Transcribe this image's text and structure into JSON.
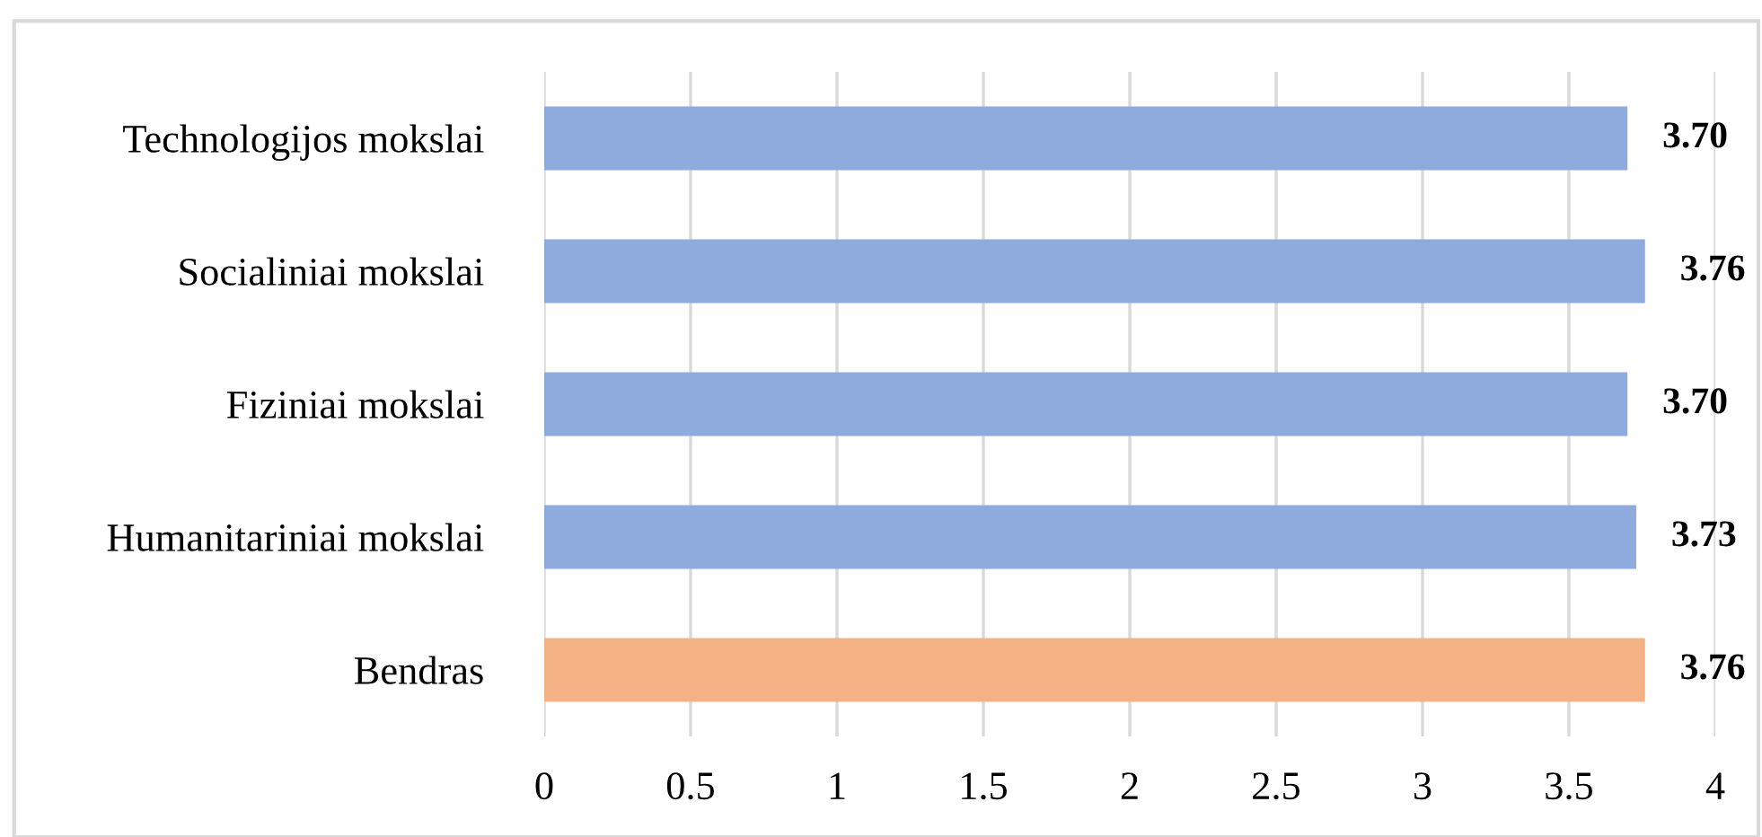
{
  "chart_data": {
    "type": "bar",
    "orientation": "horizontal",
    "categories": [
      "Technologijos mokslai",
      "Socialiniai mokslai",
      "Fiziniai mokslai",
      "Humanitariniai mokslai",
      "Bendras"
    ],
    "values": [
      3.7,
      3.76,
      3.7,
      3.73,
      3.76
    ],
    "colors": [
      "#8faadc",
      "#8faadc",
      "#8faadc",
      "#8faadc",
      "#f4b183"
    ],
    "value_labels": [
      "3.70",
      "3.76",
      "3.70",
      "3.73",
      "3.76"
    ],
    "xlim": [
      0,
      4
    ],
    "xticks": [
      0,
      0.5,
      1,
      1.5,
      2,
      2.5,
      3,
      3.5,
      4
    ],
    "grid": "x",
    "legend": false
  }
}
